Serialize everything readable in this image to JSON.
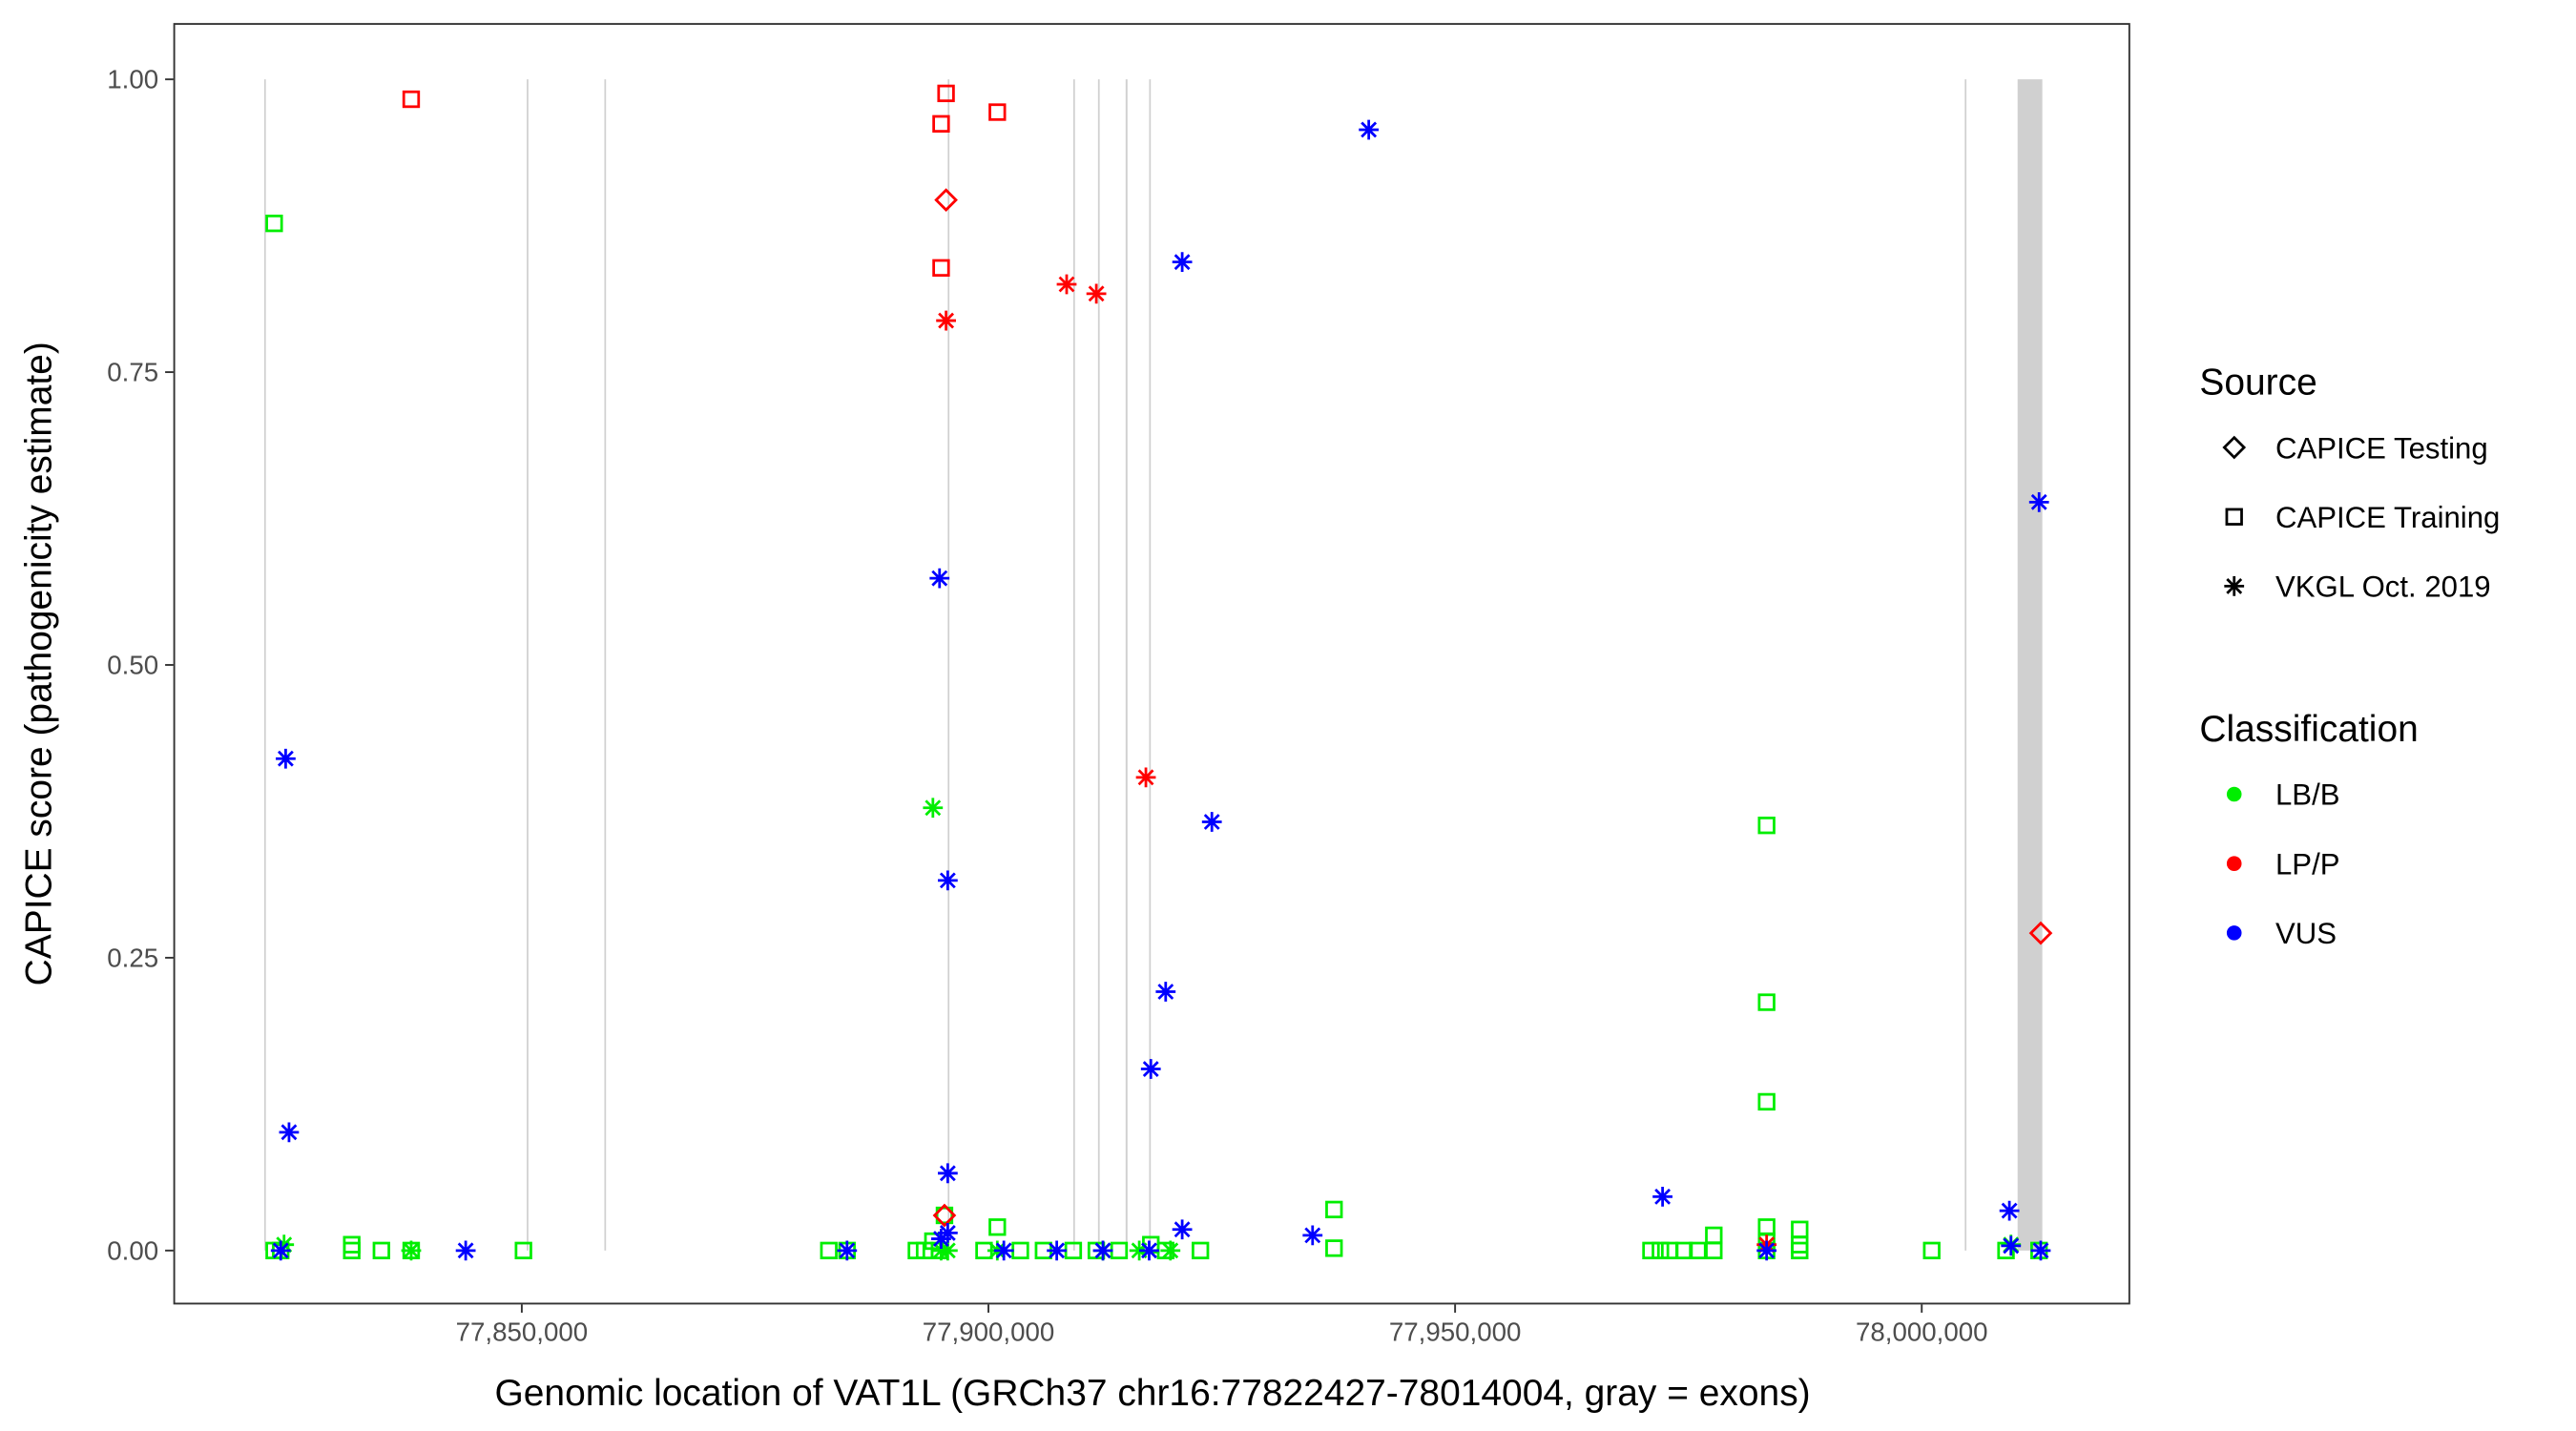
{
  "chart_data": {
    "type": "scatter",
    "title": "",
    "xlabel": "Genomic location of VAT1L (GRCh37 chr16:77822427-78014004, gray = exons)",
    "ylabel": "CAPICE score (pathogenicity estimate)",
    "xlim": [
      77812670,
      78022330
    ],
    "ylim": [
      -0.046,
      1.048
    ],
    "x_ticks": [
      77850000,
      77900000,
      77950000,
      78000000
    ],
    "x_tick_labels": [
      "77,850,000",
      "77,900,000",
      "77,950,000",
      "78,000,000"
    ],
    "y_ticks": [
      0,
      0.25,
      0.5,
      0.75,
      1.0
    ],
    "y_tick_labels": [
      "0.00",
      "0.25",
      "0.50",
      "0.75",
      "1.00"
    ],
    "grid": false,
    "exons": [
      [
        77822400,
        77822500
      ],
      [
        77850530,
        77850630
      ],
      [
        77858850,
        77858950
      ],
      [
        77895640,
        77895740
      ],
      [
        77909090,
        77909190
      ],
      [
        77911740,
        77911840
      ],
      [
        77914700,
        77914900
      ],
      [
        77917220,
        77917320
      ],
      [
        78004610,
        78004710
      ],
      [
        78010270,
        78012920
      ]
    ],
    "colors": {
      "LB/B": "#00ee00",
      "LP/P": "#ff0000",
      "VUS": "#0000ff",
      "exon": "#c8c8c8"
    },
    "legend": {
      "placement": "right",
      "source_title": "Source",
      "source_items": [
        {
          "key": "testing",
          "label": "CAPICE Testing",
          "shape": "diamond"
        },
        {
          "key": "training",
          "label": "CAPICE Training",
          "shape": "square"
        },
        {
          "key": "vkgl",
          "label": "VKGL Oct. 2019",
          "shape": "asterisk"
        }
      ],
      "class_title": "Classification",
      "class_items": [
        {
          "key": "LB/B",
          "label": "LB/B"
        },
        {
          "key": "LP/P",
          "label": "LP/P"
        },
        {
          "key": "VUS",
          "label": "VUS"
        }
      ]
    },
    "points": [
      [
        77823470,
        0.877,
        "training",
        "LB/B"
      ],
      [
        77823470,
        0.0,
        "training",
        "LB/B"
      ],
      [
        77824170,
        0.0,
        "training",
        "LB/B"
      ],
      [
        77824530,
        0.005,
        "vkgl",
        "LB/B"
      ],
      [
        77831780,
        0.005,
        "training",
        "LB/B"
      ],
      [
        77831780,
        0.0,
        "training",
        "LB/B"
      ],
      [
        77834960,
        0.0,
        "training",
        "LB/B"
      ],
      [
        77838150,
        0.0,
        "training",
        "LB/B"
      ],
      [
        77838150,
        0.0,
        "vkgl",
        "LB/B"
      ],
      [
        77850180,
        0.0,
        "training",
        "LB/B"
      ],
      [
        77882900,
        0.0,
        "training",
        "LB/B"
      ],
      [
        77884850,
        0.0,
        "training",
        "LB/B"
      ],
      [
        77892280,
        0.0,
        "training",
        "LB/B"
      ],
      [
        77893160,
        0.0,
        "training",
        "LB/B"
      ],
      [
        77894050,
        0.008,
        "training",
        "LB/B"
      ],
      [
        77894760,
        0.0,
        "training",
        "LB/B"
      ],
      [
        77894930,
        0.0,
        "vkgl",
        "LB/B"
      ],
      [
        77895290,
        0.03,
        "training",
        "LB/B"
      ],
      [
        77895640,
        0.0,
        "vkgl",
        "LB/B"
      ],
      [
        77894050,
        0.378,
        "vkgl",
        "LB/B"
      ],
      [
        77899530,
        0.0,
        "training",
        "LB/B"
      ],
      [
        77900950,
        0.02,
        "training",
        "LB/B"
      ],
      [
        77900950,
        0.0,
        "vkgl",
        "LB/B"
      ],
      [
        77903420,
        0.0,
        "training",
        "LB/B"
      ],
      [
        77905900,
        0.0,
        "training",
        "LB/B"
      ],
      [
        77909090,
        0.0,
        "training",
        "LB/B"
      ],
      [
        77911560,
        0.0,
        "training",
        "LB/B"
      ],
      [
        77912270,
        0.0,
        "vkgl",
        "LB/B"
      ],
      [
        77914000,
        0.0,
        "training",
        "LB/B"
      ],
      [
        77916160,
        0.0,
        "vkgl",
        "LB/B"
      ],
      [
        77917400,
        0.005,
        "training",
        "LB/B"
      ],
      [
        77918990,
        0.0,
        "training",
        "LB/B"
      ],
      [
        77919500,
        0.0,
        "vkgl",
        "LB/B"
      ],
      [
        77922710,
        0.0,
        "training",
        "LB/B"
      ],
      [
        77937030,
        0.035,
        "training",
        "LB/B"
      ],
      [
        77937030,
        0.002,
        "training",
        "LB/B"
      ],
      [
        77970990,
        0.0,
        "training",
        "LB/B"
      ],
      [
        77972000,
        0.0,
        "training",
        "LB/B"
      ],
      [
        77973000,
        0.0,
        "training",
        "LB/B"
      ],
      [
        77974530,
        0.0,
        "training",
        "LB/B"
      ],
      [
        77976000,
        0.0,
        "training",
        "LB/B"
      ],
      [
        77977720,
        0.013,
        "training",
        "LB/B"
      ],
      [
        77977720,
        0.0,
        "training",
        "LB/B"
      ],
      [
        77983380,
        0.363,
        "training",
        "LB/B"
      ],
      [
        77983380,
        0.212,
        "training",
        "LB/B"
      ],
      [
        77983380,
        0.127,
        "training",
        "LB/B"
      ],
      [
        77983380,
        0.02,
        "training",
        "LB/B"
      ],
      [
        77983380,
        0.008,
        "training",
        "LB/B"
      ],
      [
        77983380,
        0.0,
        "training",
        "LB/B"
      ],
      [
        77986920,
        0.018,
        "training",
        "LB/B"
      ],
      [
        77986920,
        0.005,
        "training",
        "LB/B"
      ],
      [
        77986920,
        0.0,
        "training",
        "LB/B"
      ],
      [
        78001070,
        0.0,
        "training",
        "LB/B"
      ],
      [
        78009030,
        0.0,
        "training",
        "LB/B"
      ],
      [
        78009560,
        0.005,
        "vkgl",
        "LB/B"
      ],
      [
        78012570,
        0.0,
        "training",
        "LB/B"
      ],
      [
        77838150,
        0.983,
        "training",
        "LP/P"
      ],
      [
        77895460,
        0.988,
        "training",
        "LP/P"
      ],
      [
        77894930,
        0.962,
        "training",
        "LP/P"
      ],
      [
        77900950,
        0.972,
        "training",
        "LP/P"
      ],
      [
        77894930,
        0.839,
        "training",
        "LP/P"
      ],
      [
        77895460,
        0.897,
        "testing",
        "LP/P"
      ],
      [
        77895290,
        0.03,
        "testing",
        "LP/P"
      ],
      [
        78012750,
        0.271,
        "testing",
        "LP/P"
      ],
      [
        77895460,
        0.794,
        "vkgl",
        "LP/P"
      ],
      [
        77908380,
        0.825,
        "vkgl",
        "LP/P"
      ],
      [
        77911560,
        0.817,
        "vkgl",
        "LP/P"
      ],
      [
        77916870,
        0.404,
        "vkgl",
        "LP/P"
      ],
      [
        77983380,
        0.005,
        "vkgl",
        "LP/P"
      ],
      [
        77940750,
        0.957,
        "vkgl",
        "VUS"
      ],
      [
        77920760,
        0.844,
        "vkgl",
        "VUS"
      ],
      [
        77894760,
        0.574,
        "vkgl",
        "VUS"
      ],
      [
        77824700,
        0.42,
        "vkgl",
        "VUS"
      ],
      [
        77923940,
        0.366,
        "vkgl",
        "VUS"
      ],
      [
        77895640,
        0.316,
        "vkgl",
        "VUS"
      ],
      [
        77918990,
        0.221,
        "vkgl",
        "VUS"
      ],
      [
        77917400,
        0.155,
        "vkgl",
        "VUS"
      ],
      [
        77825060,
        0.101,
        "vkgl",
        "VUS"
      ],
      [
        77895640,
        0.066,
        "vkgl",
        "VUS"
      ],
      [
        77972230,
        0.046,
        "vkgl",
        "VUS"
      ],
      [
        78009390,
        0.034,
        "vkgl",
        "VUS"
      ],
      [
        78012570,
        0.639,
        "vkgl",
        "VUS"
      ],
      [
        77920760,
        0.018,
        "vkgl",
        "VUS"
      ],
      [
        77934730,
        0.013,
        "vkgl",
        "VUS"
      ],
      [
        77895640,
        0.015,
        "vkgl",
        "VUS"
      ],
      [
        77894930,
        0.01,
        "vkgl",
        "VUS"
      ],
      [
        77824170,
        0.0,
        "vkgl",
        "VUS"
      ],
      [
        77843990,
        0.0,
        "vkgl",
        "VUS"
      ],
      [
        77884850,
        0.0,
        "vkgl",
        "VUS"
      ],
      [
        77901650,
        0.0,
        "vkgl",
        "VUS"
      ],
      [
        77907320,
        0.0,
        "vkgl",
        "VUS"
      ],
      [
        77912270,
        0.0,
        "vkgl",
        "VUS"
      ],
      [
        77917220,
        0.0,
        "vkgl",
        "VUS"
      ],
      [
        77983380,
        0.0,
        "vkgl",
        "VUS"
      ],
      [
        78009560,
        0.004,
        "vkgl",
        "VUS"
      ],
      [
        78012750,
        0.0,
        "vkgl",
        "VUS"
      ]
    ]
  }
}
